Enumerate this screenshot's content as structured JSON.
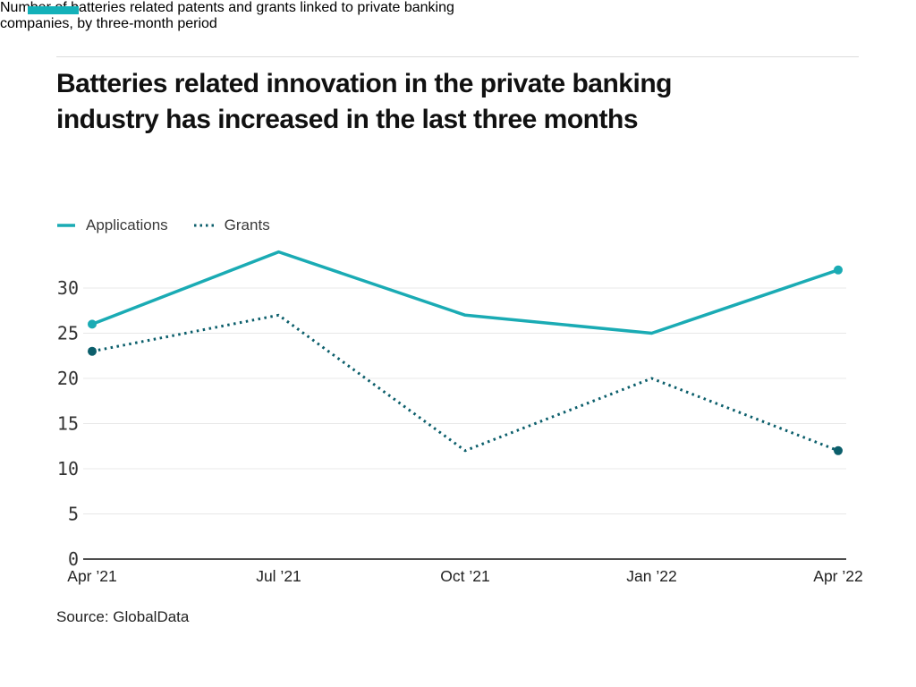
{
  "brand": {
    "accent_color": "#13b1b9"
  },
  "header": {
    "title_lines": [
      "Batteries related innovation in the private banking",
      "industry has increased in the last three months"
    ],
    "subtitle_lines": [
      "Number of batteries related patents and grants linked to private banking",
      "companies, by three-month period"
    ]
  },
  "chart_data": {
    "type": "line",
    "title": "Batteries related innovation in the private banking industry has increased in the last three months",
    "subtitle": "Number of batteries related patents and grants linked to private banking companies, by three-month period",
    "x": [
      "Apr ’21",
      "Jul ’21",
      "Oct ’21",
      "Jan ’22",
      "Apr ’22"
    ],
    "series": [
      {
        "name": "Applications",
        "values": [
          26,
          34,
          27,
          25,
          32
        ],
        "style": "solid",
        "color": "#1aabb4"
      },
      {
        "name": "Grants",
        "values": [
          23,
          27,
          12,
          20,
          12
        ],
        "style": "dotted",
        "color": "#0b5e6b"
      }
    ],
    "yticks": [
      0,
      5,
      10,
      15,
      20,
      25,
      30
    ],
    "ylim": [
      0,
      34
    ],
    "xlabel": "",
    "ylabel": "",
    "grid": true,
    "legend_position": "top-left",
    "markers": "endpoints-only",
    "axis_color": "#4d4d4d",
    "gridline_color": "#e8e8e8",
    "tick_label_color": "#333333"
  },
  "footer": {
    "source": "Source: GlobalData"
  }
}
